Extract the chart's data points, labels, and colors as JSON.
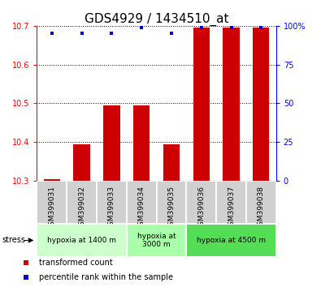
{
  "title": "GDS4929 / 1434510_at",
  "samples": [
    "GSM399031",
    "GSM399032",
    "GSM399033",
    "GSM399034",
    "GSM399035",
    "GSM399036",
    "GSM399037",
    "GSM399038"
  ],
  "transformed_count": [
    10.305,
    10.395,
    10.495,
    10.495,
    10.395,
    10.695,
    10.695,
    10.695
  ],
  "percentile_rank": [
    95,
    95,
    95,
    99,
    95,
    99,
    99,
    99
  ],
  "ylim_left": [
    10.3,
    10.7
  ],
  "ylim_right": [
    0,
    100
  ],
  "yticks_left": [
    10.3,
    10.4,
    10.5,
    10.6,
    10.7
  ],
  "yticks_right": [
    0,
    25,
    50,
    75,
    100
  ],
  "bar_color": "#cc0000",
  "dot_color": "#0000cc",
  "bar_bottom": 10.3,
  "groups": [
    {
      "label": "hypoxia at 1400 m",
      "start": 0,
      "end": 3,
      "color": "#ccffcc"
    },
    {
      "label": "hypoxia at\n3000 m",
      "start": 3,
      "end": 5,
      "color": "#aaffaa"
    },
    {
      "label": "hypoxia at 4500 m",
      "start": 5,
      "end": 8,
      "color": "#55dd55"
    }
  ],
  "stress_label": "stress",
  "legend_bar_label": "transformed count",
  "legend_dot_label": "percentile rank within the sample",
  "title_fontsize": 11,
  "tick_fontsize": 7,
  "sample_tick_fontsize": 6.5,
  "background_color": "#ffffff"
}
